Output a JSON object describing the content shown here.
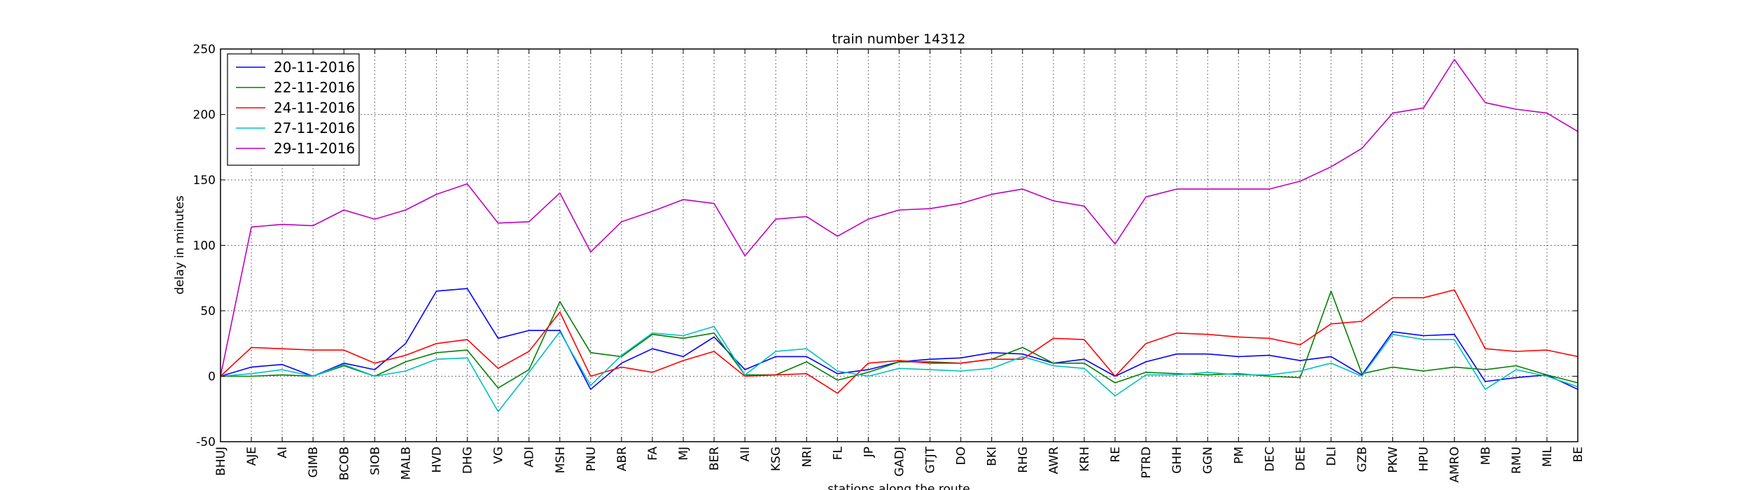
{
  "chart_data": {
    "type": "line",
    "title": "train number 14312",
    "xlabel": "stations along the route",
    "ylabel": "delay in minutes",
    "ylim": [
      -50,
      250
    ],
    "yticks": [
      -50,
      0,
      50,
      100,
      150,
      200,
      250
    ],
    "grid": true,
    "legend_position": "top-left",
    "categories": [
      "BHUJ",
      "AJE",
      "AI",
      "GIMB",
      "BCOB",
      "SIOB",
      "MALB",
      "HVD",
      "DHG",
      "VG",
      "ADI",
      "MSH",
      "PNU",
      "ABR",
      "FA",
      "MJ",
      "BER",
      "AII",
      "KSG",
      "NRI",
      "FL",
      "JP",
      "GADJ",
      "GTJT",
      "DO",
      "BKI",
      "RHG",
      "AWR",
      "KRH",
      "RE",
      "PTRD",
      "GHH",
      "GGN",
      "PM",
      "DEC",
      "DEE",
      "DLI",
      "GZB",
      "PKW",
      "HPU",
      "AMRO",
      "MB",
      "RMU",
      "MIL",
      "BE"
    ],
    "series": [
      {
        "name": "20-11-2016",
        "color": "#0000ff",
        "values": [
          0,
          7,
          9,
          0,
          10,
          5,
          25,
          65,
          67,
          29,
          35,
          35,
          -10,
          10,
          21,
          15,
          30,
          5,
          15,
          15,
          2,
          5,
          11,
          13,
          14,
          18,
          17,
          10,
          13,
          0,
          11,
          17,
          17,
          15,
          16,
          12,
          15,
          1,
          34,
          31,
          32,
          -4,
          -1,
          1,
          -10
        ]
      },
      {
        "name": "22-11-2016",
        "color": "#008000",
        "values": [
          0,
          0,
          1,
          0,
          8,
          0,
          11,
          18,
          20,
          -9,
          5,
          57,
          18,
          15,
          32,
          29,
          33,
          1,
          1,
          11,
          -3,
          3,
          11,
          11,
          10,
          13,
          22,
          10,
          10,
          -5,
          3,
          2,
          1,
          2,
          0,
          -1,
          65,
          2,
          7,
          4,
          7,
          5,
          8,
          1,
          -5
        ]
      },
      {
        "name": "24-11-2016",
        "color": "#ff0000",
        "values": [
          0,
          22,
          21,
          20,
          20,
          10,
          16,
          25,
          28,
          6,
          19,
          49,
          0,
          7,
          3,
          12,
          19,
          0,
          1,
          2,
          -13,
          10,
          12,
          10,
          10,
          13,
          13,
          29,
          28,
          0,
          25,
          33,
          32,
          30,
          29,
          24,
          40,
          42,
          60,
          60,
          66,
          21,
          19,
          20,
          15
        ]
      },
      {
        "name": "27-11-2016",
        "color": "#00bfbf",
        "values": [
          0,
          2,
          5,
          0,
          9,
          0,
          4,
          13,
          14,
          -27,
          3,
          34,
          -7,
          16,
          33,
          31,
          38,
          1,
          19,
          21,
          4,
          0,
          6,
          5,
          4,
          6,
          15,
          8,
          6,
          -15,
          1,
          1,
          3,
          1,
          1,
          4,
          10,
          0,
          32,
          28,
          28,
          -10,
          5,
          0,
          -8
        ]
      },
      {
        "name": "29-11-2016",
        "color": "#bf00bf",
        "values": [
          0,
          114,
          116,
          115,
          127,
          120,
          127,
          139,
          147,
          117,
          118,
          140,
          95,
          118,
          126,
          135,
          132,
          92,
          120,
          122,
          107,
          120,
          127,
          128,
          132,
          139,
          143,
          134,
          130,
          101,
          137,
          143,
          143,
          143,
          143,
          149,
          160,
          174,
          201,
          205,
          242,
          209,
          204,
          201,
          187
        ]
      }
    ]
  }
}
